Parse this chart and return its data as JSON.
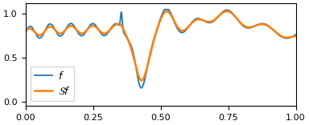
{
  "blue_color": "#1f77b4",
  "orange_color": "#ff7f0e",
  "xlim": [
    0.0,
    1.0
  ],
  "ylim": [
    -0.05,
    1.12
  ],
  "yticks": [
    0.0,
    0.5,
    1.0
  ],
  "xticks": [
    0.0,
    0.25,
    0.5,
    0.75,
    1.0
  ],
  "legend_f": "$f$",
  "legend_sf": "$\\mathcal{S}f$",
  "figsize": [
    3.84,
    1.56
  ],
  "dpi": 100,
  "linewidth_f": 1.3,
  "linewidth_sf": 1.8
}
